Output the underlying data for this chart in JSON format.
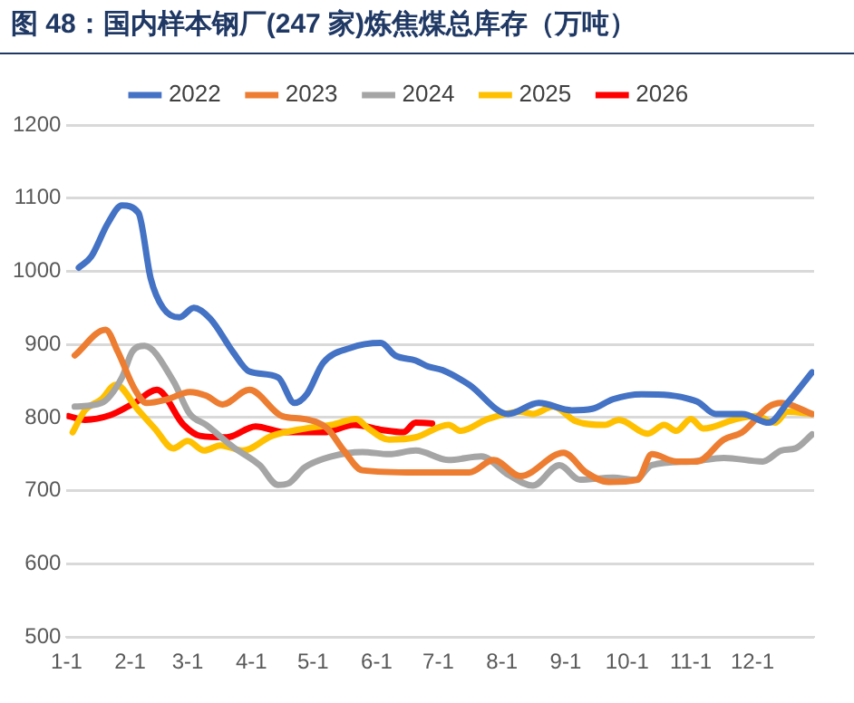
{
  "chart_data": {
    "type": "line",
    "title": "图 48：国内样本钢厂(247 家)炼焦煤总库存（万吨）",
    "xlim": [
      "--01-01",
      "--12-31"
    ],
    "xticks": [
      {
        "value": "--01-01",
        "label": "1-1"
      },
      {
        "value": "--02-01",
        "label": "2-1"
      },
      {
        "value": "--03-01",
        "label": "3-1"
      },
      {
        "value": "--04-01",
        "label": "4-1"
      },
      {
        "value": "--05-01",
        "label": "5-1"
      },
      {
        "value": "--06-01",
        "label": "6-1"
      },
      {
        "value": "--07-01",
        "label": "7-1"
      },
      {
        "value": "--08-01",
        "label": "8-1"
      },
      {
        "value": "--09-01",
        "label": "9-1"
      },
      {
        "value": "--10-01",
        "label": "10-1"
      },
      {
        "value": "--11-01",
        "label": "11-1"
      },
      {
        "value": "--12-01",
        "label": "12-1"
      }
    ],
    "ylim": [
      500,
      1200
    ],
    "yticks": [
      500,
      600,
      700,
      800,
      900,
      1000,
      1100,
      1200
    ],
    "grid": "y",
    "legend": "top",
    "marker": "none",
    "line_style": "solid",
    "series": [
      {
        "name": "2022",
        "color": "#4472c4",
        "x": [
          "--01-07",
          "--01-13",
          "--01-21",
          "--01-28",
          "--02-05",
          "--02-11",
          "--02-17",
          "--02-25",
          "--03-04",
          "--03-12",
          "--03-23",
          "--03-31",
          "--04-14",
          "--04-22",
          "--04-28",
          "--05-06",
          "--05-19",
          "--06-03",
          "--06-10",
          "--06-20",
          "--06-26",
          "--07-03",
          "--07-16",
          "--08-04",
          "--08-19",
          "--09-04",
          "--09-14",
          "--09-24",
          "--10-08",
          "--11-04",
          "--11-13",
          "--11-26",
          "--12-09",
          "--12-18",
          "--12-30"
        ],
        "values": [
          1005,
          1020,
          1065,
          1090,
          1080,
          990,
          950,
          937,
          950,
          935,
          890,
          863,
          855,
          820,
          832,
          875,
          895,
          902,
          885,
          878,
          870,
          865,
          845,
          805,
          820,
          810,
          812,
          825,
          832,
          822,
          805,
          805,
          793,
          820,
          862
        ]
      },
      {
        "name": "2023",
        "color": "#ed7d31",
        "x": [
          "--01-05",
          "--01-20",
          "--01-26",
          "--02-03",
          "--02-09",
          "--02-19",
          "--03-02",
          "--03-10",
          "--03-18",
          "--03-31",
          "--04-16",
          "--04-27",
          "--05-08",
          "--05-16",
          "--05-25",
          "--06-20",
          "--07-16",
          "--07-28",
          "--08-10",
          "--08-31",
          "--09-11",
          "--09-22",
          "--10-06",
          "--10-13",
          "--10-25",
          "--11-04",
          "--11-17",
          "--11-26",
          "--12-09",
          "--12-15",
          "--12-30"
        ],
        "values": [
          885,
          920,
          890,
          840,
          820,
          825,
          835,
          830,
          818,
          838,
          802,
          798,
          785,
          755,
          728,
          725,
          725,
          742,
          720,
          752,
          725,
          712,
          715,
          750,
          740,
          740,
          770,
          780,
          815,
          820,
          805
        ]
      },
      {
        "name": "2024",
        "color": "#a5a5a5",
        "x": [
          "--01-05",
          "--01-18",
          "--01-28",
          "--02-02",
          "--02-08",
          "--02-22",
          "--03-02",
          "--03-10",
          "--03-23",
          "--04-05",
          "--04-14",
          "--04-19",
          "--04-27",
          "--05-10",
          "--05-25",
          "--06-07",
          "--06-20",
          "--07-06",
          "--07-22",
          "--08-04",
          "--08-16",
          "--08-29",
          "--09-08",
          "--09-24",
          "--10-05",
          "--10-13",
          "--11-01",
          "--11-17",
          "--12-06",
          "--12-15",
          "--12-22",
          "--12-30"
        ],
        "values": [
          815,
          820,
          855,
          890,
          898,
          850,
          805,
          790,
          760,
          735,
          708,
          710,
          732,
          747,
          753,
          750,
          755,
          742,
          747,
          722,
          707,
          735,
          715,
          718,
          715,
          735,
          740,
          745,
          740,
          755,
          758,
          777
        ]
      },
      {
        "name": "2025",
        "color": "#ffc000",
        "x": [
          "--01-04",
          "--01-10",
          "--01-18",
          "--01-25",
          "--02-05",
          "--02-13",
          "--02-22",
          "--03-01",
          "--03-09",
          "--03-17",
          "--03-28",
          "--04-11",
          "--04-27",
          "--05-10",
          "--05-22",
          "--05-28",
          "--06-07",
          "--06-20",
          "--07-06",
          "--07-12",
          "--07-25",
          "--08-10",
          "--08-16",
          "--08-26",
          "--09-06",
          "--09-20",
          "--09-27",
          "--10-11",
          "--10-19",
          "--10-25",
          "--11-01",
          "--11-07",
          "--11-23",
          "--12-03",
          "--12-12",
          "--12-18",
          "--12-30"
        ],
        "values": [
          780,
          810,
          825,
          845,
          810,
          785,
          758,
          768,
          755,
          762,
          755,
          775,
          785,
          790,
          798,
          785,
          770,
          773,
          790,
          782,
          798,
          808,
          805,
          815,
          795,
          790,
          797,
          778,
          790,
          782,
          798,
          785,
          798,
          802,
          793,
          808,
          805
        ]
      },
      {
        "name": "2026",
        "color": "#ff0000",
        "x": [
          "--01-02",
          "--01-10",
          "--01-22",
          "--02-03",
          "--02-14",
          "--02-27",
          "--03-07",
          "--03-20",
          "--04-03",
          "--04-17",
          "--05-06",
          "--05-21",
          "--06-04",
          "--06-14",
          "--06-20",
          "--06-28"
        ],
        "values": [
          802,
          797,
          803,
          820,
          838,
          790,
          775,
          773,
          788,
          780,
          780,
          790,
          783,
          780,
          793,
          792
        ]
      }
    ]
  }
}
